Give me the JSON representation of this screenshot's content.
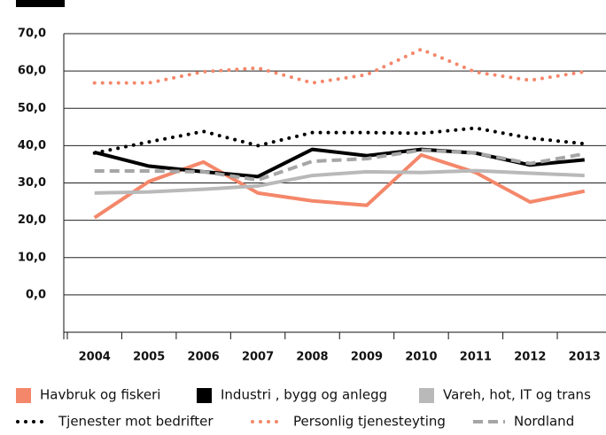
{
  "chart_data": {
    "type": "line",
    "categories": [
      "2004",
      "2005",
      "2006",
      "2007",
      "2008",
      "2009",
      "2010",
      "2011",
      "2012",
      "2013"
    ],
    "ylim": [
      -10,
      70
    ],
    "yticks": [
      {
        "value": 0,
        "label": "0,0"
      },
      {
        "value": 10,
        "label": "10,0"
      },
      {
        "value": 20,
        "label": "20,0"
      },
      {
        "value": 30,
        "label": "30,0"
      },
      {
        "value": 40,
        "label": "40,0"
      },
      {
        "value": 50,
        "label": "50,0"
      },
      {
        "value": 60,
        "label": "60,0"
      },
      {
        "value": 70,
        "label": "70,0"
      }
    ],
    "grid": true,
    "series": [
      {
        "name": "Havbruk og fiskeri",
        "color": "#f4876a",
        "style": "solid",
        "values": [
          20.7,
          30.4,
          35.6,
          27.3,
          25.2,
          24.0,
          37.5,
          32.8,
          24.9,
          27.8
        ]
      },
      {
        "name": "Industri , bygg og anlegg",
        "color": "#000000",
        "style": "solid",
        "values": [
          38.2,
          34.5,
          33.0,
          31.7,
          39.0,
          37.3,
          39.0,
          38.0,
          34.8,
          36.2
        ]
      },
      {
        "name": "Vareh, hot, IT og trans",
        "color": "#b9b9b9",
        "style": "solid",
        "values": [
          27.3,
          27.6,
          28.3,
          29.2,
          32.0,
          33.0,
          32.8,
          33.3,
          32.6,
          32.0
        ]
      },
      {
        "name": "Tjenester mot bedrifter",
        "color": "#000000",
        "style": "dotted",
        "values": [
          38.0,
          41.0,
          43.8,
          40.0,
          43.5,
          43.5,
          43.3,
          44.7,
          42.0,
          40.5
        ]
      },
      {
        "name": "Personlig tjenesteyting",
        "color": "#f4876a",
        "style": "dotted",
        "values": [
          56.8,
          56.8,
          59.8,
          60.8,
          56.8,
          59.0,
          65.8,
          59.7,
          57.5,
          59.8
        ]
      },
      {
        "name": "Nordland",
        "color": "#a6a6a6",
        "style": "dashed",
        "values": [
          33.2,
          33.2,
          33.0,
          30.8,
          35.8,
          36.5,
          38.8,
          38.0,
          35.2,
          37.8
        ]
      }
    ]
  }
}
